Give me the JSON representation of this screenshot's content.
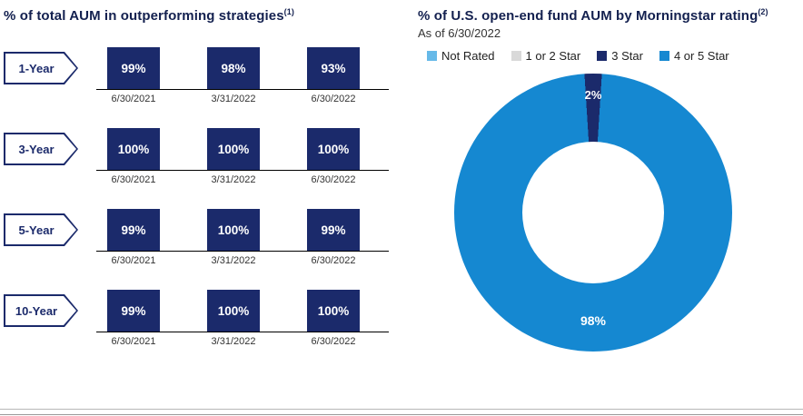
{
  "left": {
    "title": "% of total AUM in outperforming strategies",
    "footnote": "(1)",
    "rows": [
      {
        "label": "1-Year",
        "values": [
          "99%",
          "98%",
          "93%"
        ],
        "dates": [
          "6/30/2021",
          "3/31/2022",
          "6/30/2022"
        ]
      },
      {
        "label": "3-Year",
        "values": [
          "100%",
          "100%",
          "100%"
        ],
        "dates": [
          "6/30/2021",
          "3/31/2022",
          "6/30/2022"
        ]
      },
      {
        "label": "5-Year",
        "values": [
          "99%",
          "100%",
          "99%"
        ],
        "dates": [
          "6/30/2021",
          "3/31/2022",
          "6/30/2022"
        ]
      },
      {
        "label": "10-Year",
        "values": [
          "99%",
          "100%",
          "100%"
        ],
        "dates": [
          "6/30/2021",
          "3/31/2022",
          "6/30/2022"
        ]
      }
    ]
  },
  "right": {
    "title": "% of U.S. open-end fund AUM by Morningstar rating",
    "footnote": "(2)",
    "subtitle": "As of 6/30/2022",
    "legend": [
      {
        "label": "Not Rated",
        "color": "#66B9E8"
      },
      {
        "label": "1 or 2 Star",
        "color": "#D9D9D9"
      },
      {
        "label": "3 Star",
        "color": "#1B2A6B"
      },
      {
        "label": "4 or 5 Star",
        "color": "#1588D1"
      }
    ],
    "donut_labels": {
      "small": "2%",
      "big": "98%"
    }
  },
  "colors": {
    "bar_navy": "#1B2A6B",
    "donut_blue": "#1588D1",
    "title_navy": "#13204F"
  },
  "chart_data": [
    {
      "type": "bar",
      "title": "% of total AUM in outperforming strategies (1)",
      "categories": [
        "6/30/2021",
        "3/31/2022",
        "6/30/2022"
      ],
      "series": [
        {
          "name": "1-Year",
          "values": [
            99,
            98,
            93
          ]
        },
        {
          "name": "3-Year",
          "values": [
            100,
            100,
            100
          ]
        },
        {
          "name": "5-Year",
          "values": [
            99,
            100,
            99
          ]
        },
        {
          "name": "10-Year",
          "values": [
            99,
            100,
            100
          ]
        }
      ],
      "unit": "percent",
      "ylim": [
        0,
        100
      ],
      "note": "bars drawn at uniform height with value labels inside, baseline under each group"
    },
    {
      "type": "pie",
      "donut": true,
      "title": "% of U.S. open-end fund AUM by Morningstar rating (2)",
      "subtitle": "As of 6/30/2022",
      "start_angle_deg": -3.6,
      "legend_position": "top",
      "slices": [
        {
          "label": "Not Rated",
          "value": 0,
          "color": "#66B9E8"
        },
        {
          "label": "1 or 2 Star",
          "value": 0,
          "color": "#D9D9D9"
        },
        {
          "label": "3 Star",
          "value": 2,
          "color": "#1B2A6B"
        },
        {
          "label": "4 or 5 Star",
          "value": 98,
          "color": "#1588D1"
        }
      ]
    }
  ]
}
